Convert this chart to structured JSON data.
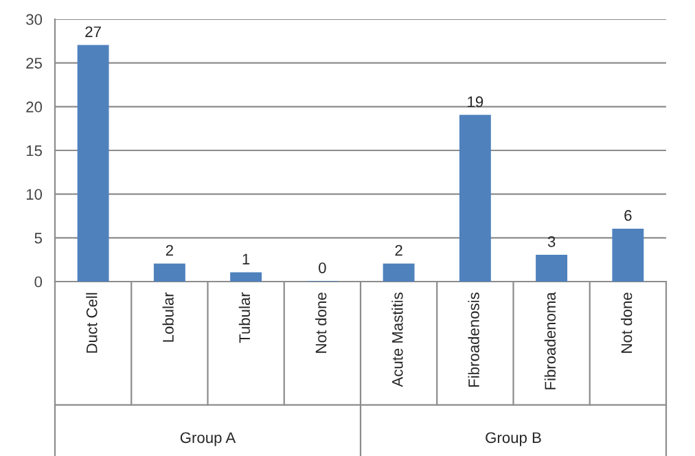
{
  "chart_data": {
    "type": "bar",
    "categories": [
      "Duct Cell",
      "Lobular",
      "Tubular",
      "Not done",
      "Acute Mastitis",
      "Fibroadenosis",
      "Fibroadenoma",
      "Not done"
    ],
    "values": [
      27,
      2,
      1,
      0,
      2,
      19,
      3,
      6
    ],
    "color": "#4f81bd",
    "ylim": [
      0,
      30
    ],
    "yticks": [
      0,
      5,
      10,
      15,
      20,
      25,
      30
    ],
    "grid": "y",
    "data_labels": true,
    "annotations": [
      "Group A",
      "Group B"
    ]
  }
}
